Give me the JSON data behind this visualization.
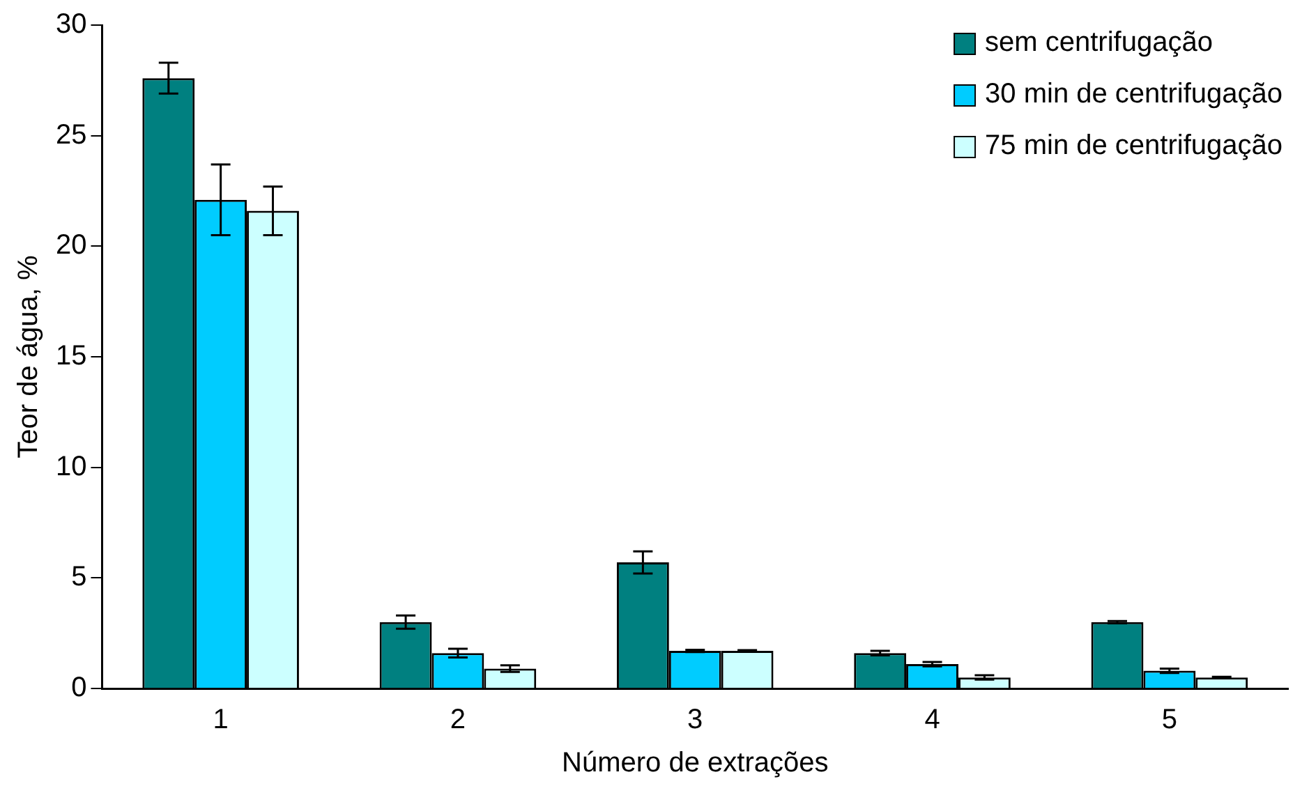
{
  "chart_data": {
    "type": "bar",
    "xlabel": "Número de extrações",
    "ylabel": "Teor de água, %",
    "categories": [
      "1",
      "2",
      "3",
      "4",
      "5"
    ],
    "series": [
      {
        "name": "sem centrifugação",
        "color": "#008080",
        "values": [
          27.6,
          3.0,
          5.7,
          1.6,
          3.0
        ],
        "errors": [
          0.7,
          0.3,
          0.5,
          0.1,
          0.05
        ]
      },
      {
        "name": "30 min de centrifugação",
        "color": "#00ccff",
        "values": [
          22.1,
          1.6,
          1.7,
          1.1,
          0.8
        ],
        "errors": [
          1.6,
          0.2,
          0.05,
          0.1,
          0.1
        ]
      },
      {
        "name": "75 min de centrifugação",
        "color": "#ccffff",
        "values": [
          21.6,
          0.9,
          1.7,
          0.5,
          0.5
        ],
        "errors": [
          1.1,
          0.15,
          0.03,
          0.1,
          0.03
        ]
      }
    ],
    "ylim": [
      0,
      30
    ],
    "yticks": [
      0,
      5,
      10,
      15,
      20,
      25,
      30
    ],
    "grid": false,
    "legend": "top right"
  }
}
